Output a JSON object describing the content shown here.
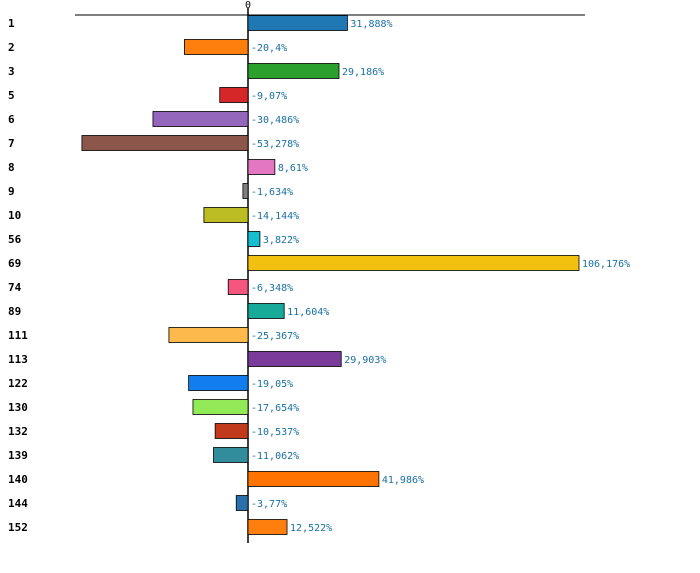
{
  "chart_data": {
    "type": "bar",
    "orientation": "horizontal",
    "title": "",
    "xlabel": "",
    "ylabel": "",
    "zero_tick_label": "0",
    "xlim": [
      -53.278,
      106.176
    ],
    "grid": false,
    "legend": "none",
    "categories": [
      "1",
      "2",
      "3",
      "5",
      "6",
      "7",
      "8",
      "9",
      "10",
      "56",
      "69",
      "74",
      "89",
      "111",
      "113",
      "122",
      "130",
      "132",
      "139",
      "140",
      "144",
      "152"
    ],
    "values": [
      31.888,
      -20.4,
      29.186,
      -9.07,
      -30.486,
      -53.278,
      8.61,
      -1.634,
      -14.144,
      3.822,
      106.176,
      -6.348,
      11.604,
      -25.367,
      29.903,
      -19.05,
      -17.654,
      -10.537,
      -11.062,
      41.986,
      -3.77,
      12.522
    ],
    "value_labels": [
      "31,888%",
      "-20,4%",
      "29,186%",
      "-9,07%",
      "-30,486%",
      "-53,278%",
      "8,61%",
      "-1,634%",
      "-14,144%",
      "3,822%",
      "106,176%",
      "-6,348%",
      "11,604%",
      "-25,367%",
      "29,903%",
      "-19,05%",
      "-17,654%",
      "-10,537%",
      "-11,062%",
      "41,986%",
      "-3,77%",
      "12,522%"
    ],
    "colors": [
      "#1f77b4",
      "#ff7f0e",
      "#2ca02c",
      "#d62728",
      "#9467bd",
      "#8c564b",
      "#e377c2",
      "#7f7f7f",
      "#bcbd22",
      "#17becf",
      "#f2c10f",
      "#f4567d",
      "#17aa99",
      "#fdb94b",
      "#7b3b9b",
      "#127dee",
      "#92ea56",
      "#c23a1c",
      "#318c9c",
      "#ff7400",
      "#2a70ab",
      "#ff7f0e"
    ],
    "value_label_color": "#1a6fa0"
  }
}
